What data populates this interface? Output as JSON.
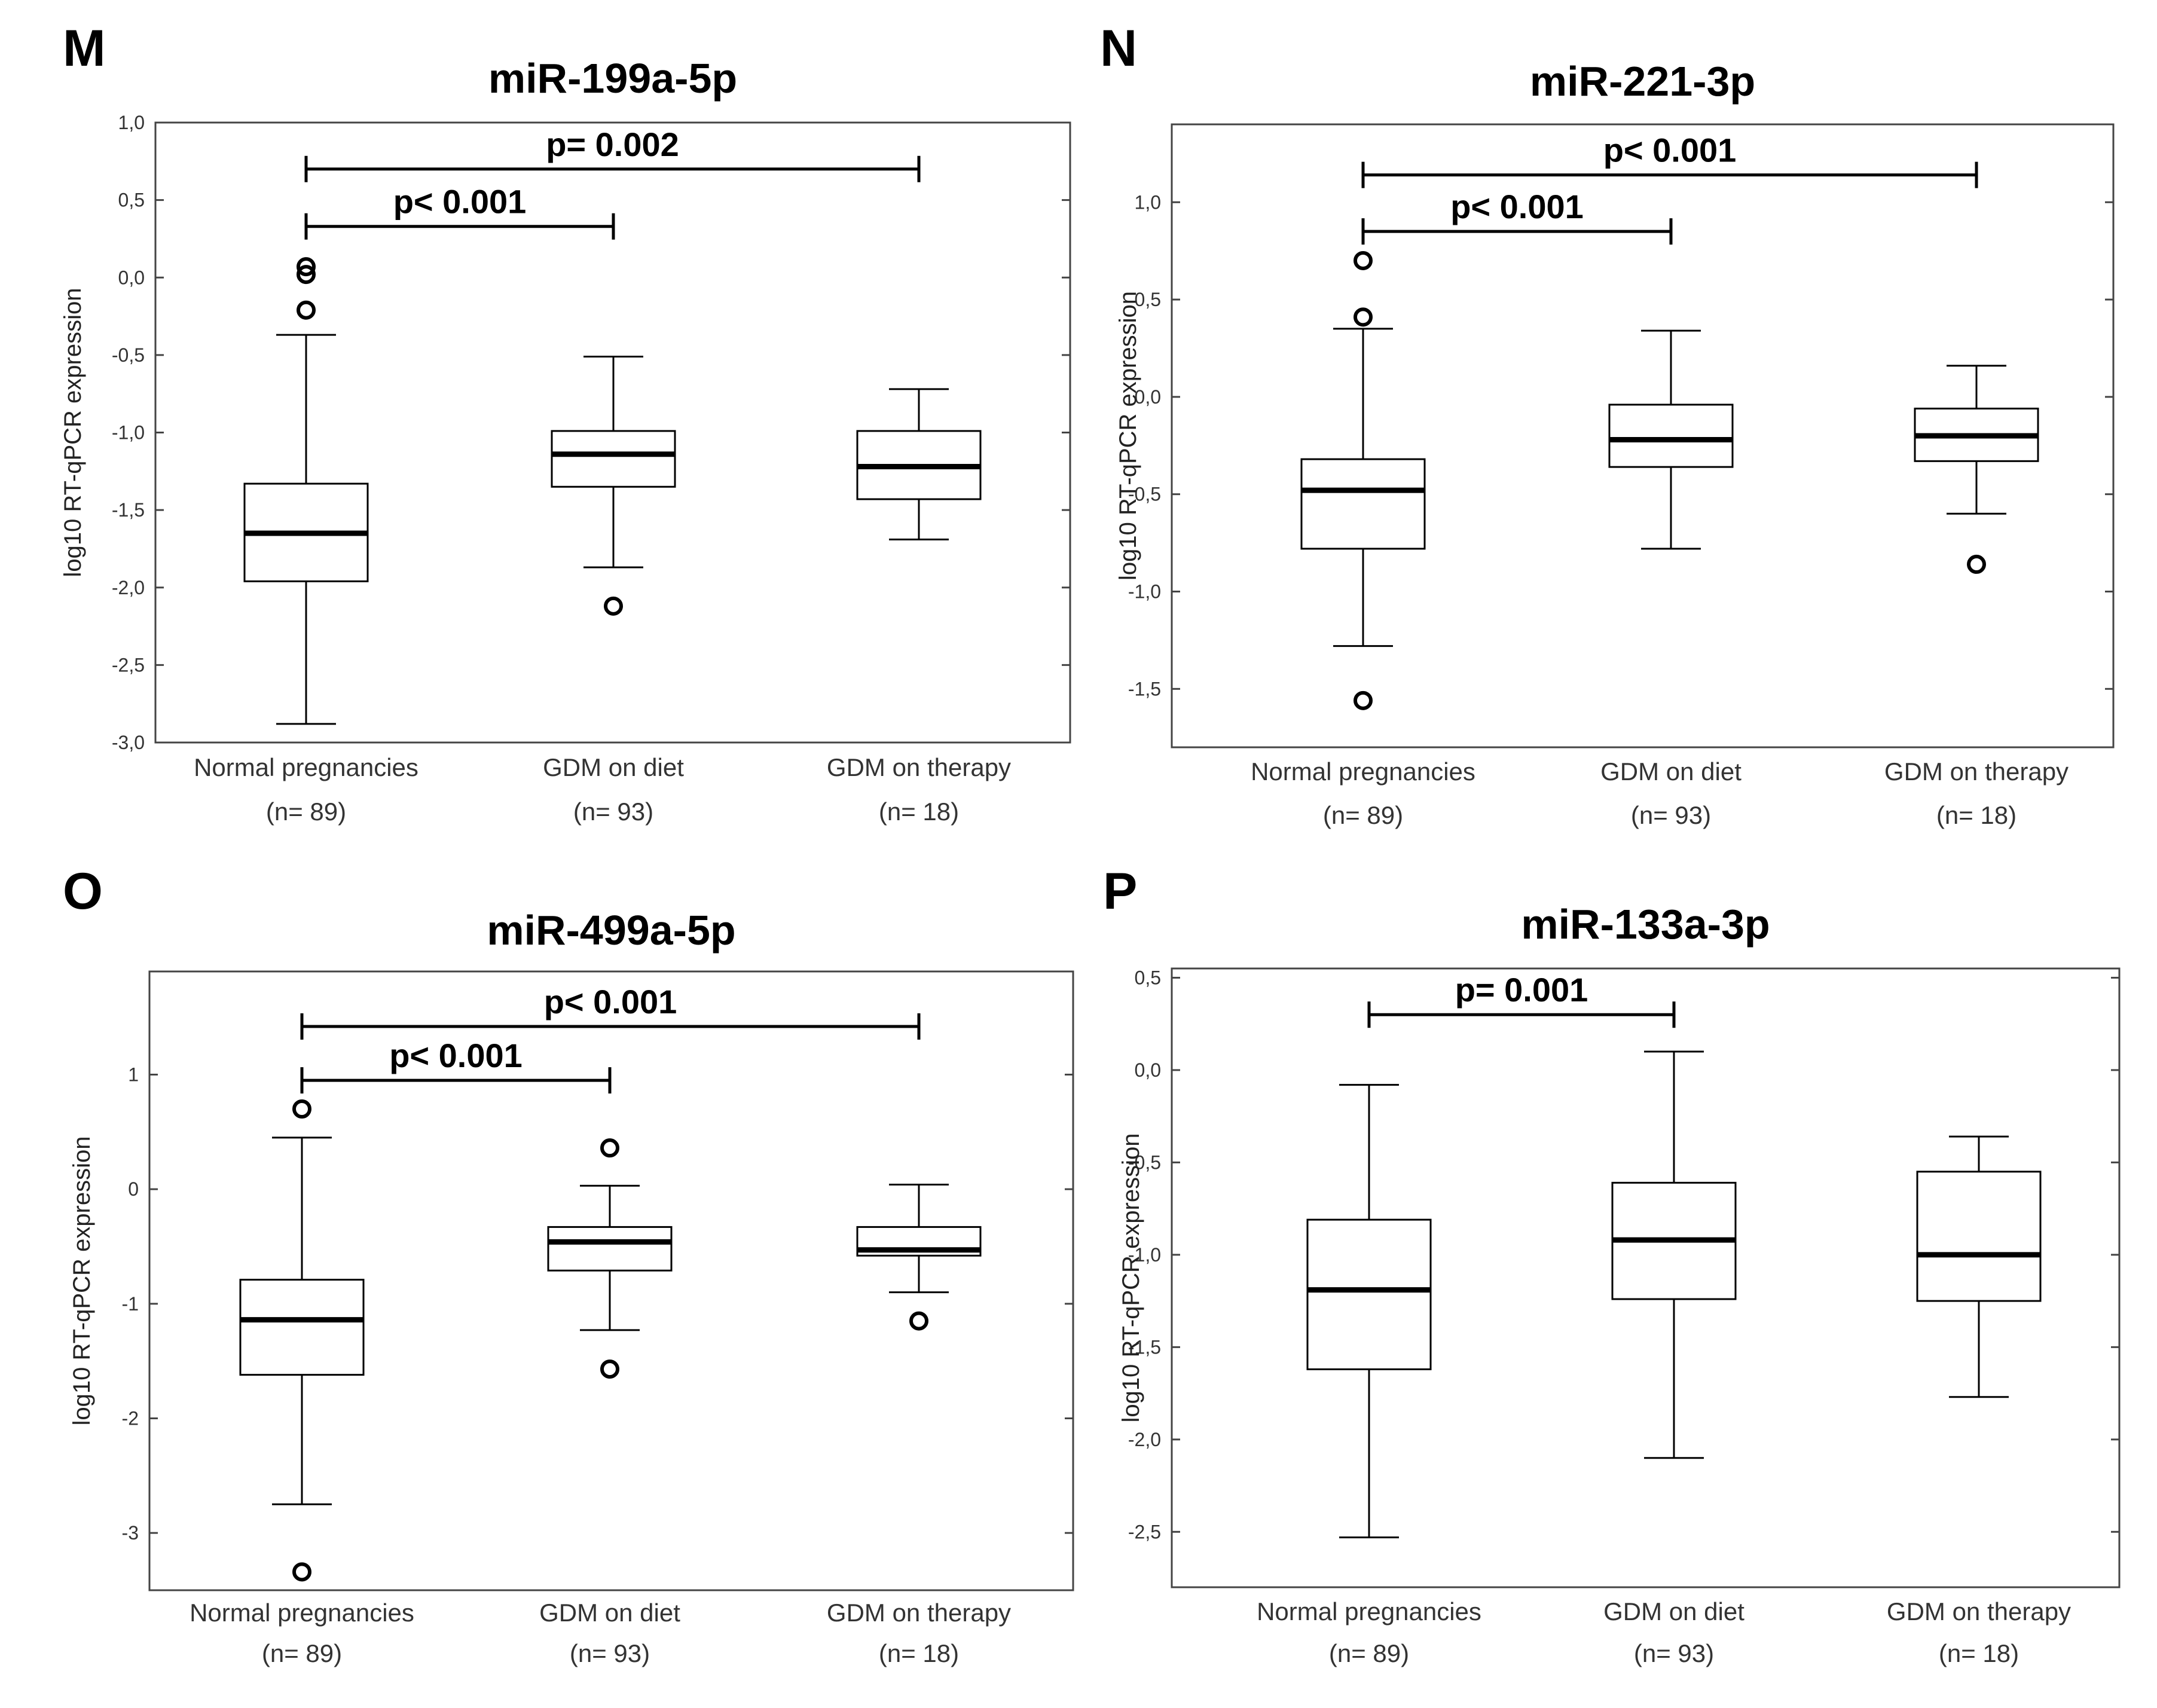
{
  "figure": {
    "background": "#ffffff",
    "line_color": "#000000"
  },
  "chart_data": [
    {
      "type": "box",
      "panel": "M",
      "title": "miR-199a-5p",
      "ylabel": "log10 RT-qPCR expression",
      "ylim": [
        -3.0,
        1.0
      ],
      "yticks": [
        1.0,
        0.5,
        0.0,
        -0.5,
        -1.0,
        -1.5,
        -2.0,
        -2.5,
        -3.0
      ],
      "ytick_labels": [
        "1,0",
        "0,5",
        "0,0",
        "-0,5",
        "-1,0",
        "-1,5",
        "-2,0",
        "-2,5",
        "-3,0"
      ],
      "categories": [
        "Normal pregnancies",
        "GDM on diet",
        "GDM on therapy"
      ],
      "n_labels": [
        "(n= 89)",
        "(n= 93)",
        "(n= 18)"
      ],
      "boxes": [
        {
          "whisker_low": -2.88,
          "q1": -1.96,
          "median": -1.65,
          "q3": -1.33,
          "whisker_high": -0.37,
          "outliers": [
            0.07,
            0.02,
            -0.21
          ]
        },
        {
          "whisker_low": -1.87,
          "q1": -1.35,
          "median": -1.14,
          "q3": -0.99,
          "whisker_high": -0.51,
          "outliers": [
            -2.12
          ]
        },
        {
          "whisker_low": -1.69,
          "q1": -1.43,
          "median": -1.22,
          "q3": -0.99,
          "whisker_high": -0.72,
          "outliers": []
        }
      ],
      "significance": [
        {
          "from": 0,
          "to": 2,
          "label": "p= 0.002",
          "y": 0.7
        },
        {
          "from": 0,
          "to": 1,
          "label": "p< 0.001",
          "y": 0.33
        }
      ]
    },
    {
      "type": "box",
      "panel": "N",
      "title": "miR-221-3p",
      "ylabel": "log10 RT-qPCR expression",
      "ylim": [
        -1.8,
        1.4
      ],
      "yticks": [
        1.0,
        0.5,
        0.0,
        -0.5,
        -1.0,
        -1.5
      ],
      "ytick_labels": [
        "1,0",
        "0,5",
        "0,0",
        "-0,5",
        "-1,0",
        "-1,5"
      ],
      "categories": [
        "Normal pregnancies",
        "GDM on diet",
        "GDM on therapy"
      ],
      "n_labels": [
        "(n= 89)",
        "(n= 93)",
        "(n= 18)"
      ],
      "boxes": [
        {
          "whisker_low": -1.28,
          "q1": -0.78,
          "median": -0.48,
          "q3": -0.32,
          "whisker_high": 0.35,
          "outliers": [
            0.7,
            0.41,
            -1.56
          ]
        },
        {
          "whisker_low": -0.78,
          "q1": -0.36,
          "median": -0.22,
          "q3": -0.04,
          "whisker_high": 0.34,
          "outliers": []
        },
        {
          "whisker_low": -0.6,
          "q1": -0.33,
          "median": -0.2,
          "q3": -0.06,
          "whisker_high": 0.16,
          "outliers": [
            -0.86
          ]
        }
      ],
      "significance": [
        {
          "from": 0,
          "to": 2,
          "label": "p< 0.001",
          "y": 1.14
        },
        {
          "from": 0,
          "to": 1,
          "label": "p< 0.001",
          "y": 0.85
        }
      ]
    },
    {
      "type": "box",
      "panel": "O",
      "title": "miR-499a-5p",
      "ylabel": "log10 RT-qPCR expression",
      "ylim": [
        -3.5,
        1.9
      ],
      "yticks": [
        1,
        0,
        -1,
        -2,
        -3
      ],
      "ytick_labels": [
        "1",
        "0",
        "-1",
        "-2",
        "-3"
      ],
      "categories": [
        "Normal pregnancies",
        "GDM on diet",
        "GDM on therapy"
      ],
      "n_labels": [
        "(n= 89)",
        "(n= 93)",
        "(n= 18)"
      ],
      "boxes": [
        {
          "whisker_low": -2.75,
          "q1": -1.62,
          "median": -1.14,
          "q3": -0.79,
          "whisker_high": 0.45,
          "outliers": [
            0.7,
            -3.34
          ]
        },
        {
          "whisker_low": -1.23,
          "q1": -0.71,
          "median": -0.46,
          "q3": -0.33,
          "whisker_high": 0.03,
          "outliers": [
            0.36,
            -1.57
          ]
        },
        {
          "whisker_low": -0.9,
          "q1": -0.58,
          "median": -0.53,
          "q3": -0.33,
          "whisker_high": 0.04,
          "outliers": [
            -1.15
          ]
        }
      ],
      "significance": [
        {
          "from": 0,
          "to": 2,
          "label": "p< 0.001",
          "y": 1.42
        },
        {
          "from": 0,
          "to": 1,
          "label": "p< 0.001",
          "y": 0.95
        }
      ]
    },
    {
      "type": "box",
      "panel": "P",
      "title": "miR-133a-3p",
      "ylabel": "log10 RT-qPCR expression",
      "ylim": [
        -2.8,
        0.55
      ],
      "yticks": [
        0.5,
        0.0,
        -0.5,
        -1.0,
        -1.5,
        -2.0,
        -2.5
      ],
      "ytick_labels": [
        "0,5",
        "0,0",
        "-0,5",
        "-1,0",
        "-1,5",
        "-2,0",
        "-2,5"
      ],
      "categories": [
        "Normal pregnancies",
        "GDM on diet",
        "GDM on therapy"
      ],
      "n_labels": [
        "(n= 89)",
        "(n= 93)",
        "(n= 18)"
      ],
      "boxes": [
        {
          "whisker_low": -2.53,
          "q1": -1.62,
          "median": -1.19,
          "q3": -0.81,
          "whisker_high": -0.08,
          "outliers": []
        },
        {
          "whisker_low": -2.1,
          "q1": -1.24,
          "median": -0.92,
          "q3": -0.61,
          "whisker_high": 0.1,
          "outliers": []
        },
        {
          "whisker_low": -1.77,
          "q1": -1.25,
          "median": -1.0,
          "q3": -0.55,
          "whisker_high": -0.36,
          "outliers": []
        }
      ],
      "significance": [
        {
          "from": 0,
          "to": 1,
          "label": "p= 0.001",
          "y": 0.3
        }
      ]
    }
  ]
}
